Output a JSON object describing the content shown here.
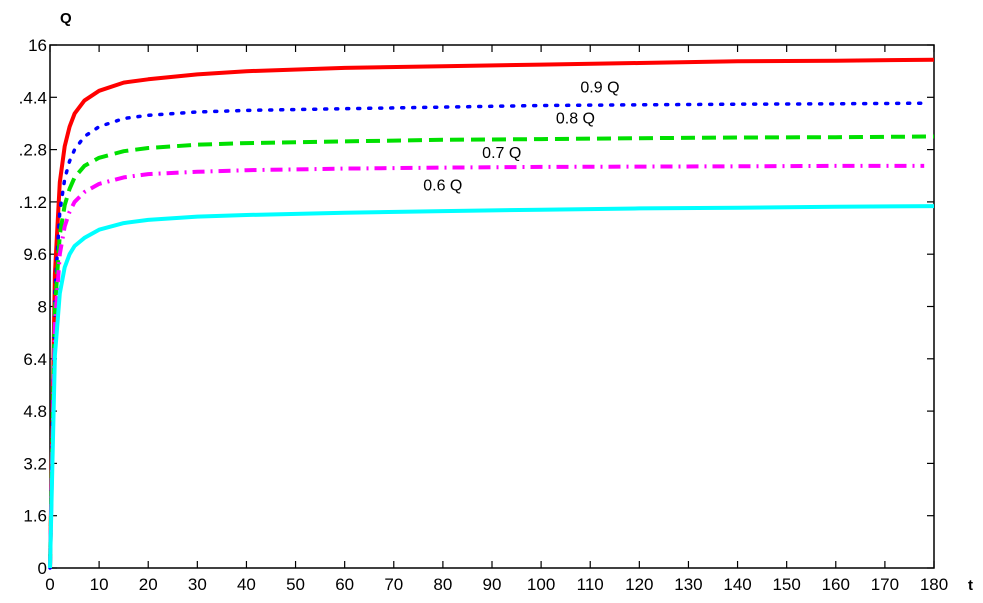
{
  "chart_data": {
    "type": "line",
    "xlabel": "t",
    "ylabel": "Q",
    "xlim": [
      0,
      180
    ],
    "ylim": [
      0,
      16
    ],
    "x_ticks": [
      0,
      10,
      20,
      30,
      40,
      50,
      60,
      70,
      80,
      90,
      100,
      110,
      120,
      130,
      140,
      150,
      160,
      170,
      180
    ],
    "y_ticks": [
      0,
      1.6,
      3.2,
      4.8,
      6.4,
      8,
      9.6,
      11.2,
      12.8,
      14.4,
      16
    ],
    "x_tick_labels": [
      "0",
      "10",
      "20",
      "30",
      "40",
      "50",
      "60",
      "70",
      "80",
      "90",
      "100",
      "110",
      "120",
      "130",
      "140",
      "150",
      "160",
      "170",
      "180"
    ],
    "y_tick_labels": [
      "0",
      "1.6",
      "3.2",
      "4.8",
      "6.4",
      "8",
      "9.6",
      ".1.2",
      ".2.8",
      ".4.4",
      "16"
    ],
    "grid": false,
    "series": [
      {
        "color": "#ff0000",
        "style": "solid",
        "x": [
          0,
          1,
          2,
          3,
          4,
          5,
          7,
          10,
          15,
          20,
          30,
          40,
          60,
          80,
          100,
          120,
          140,
          160,
          180
        ],
        "y": [
          0,
          9.0,
          11.8,
          12.9,
          13.5,
          13.9,
          14.3,
          14.6,
          14.85,
          14.95,
          15.1,
          15.2,
          15.3,
          15.35,
          15.4,
          15.45,
          15.5,
          15.52,
          15.55
        ]
      },
      {
        "color": "#0000ff",
        "style": "dotted",
        "x": [
          0,
          1,
          2,
          3,
          4,
          5,
          7,
          10,
          15,
          20,
          30,
          40,
          60,
          80,
          100,
          120,
          140,
          160,
          178
        ],
        "y": [
          0,
          8.4,
          10.9,
          11.9,
          12.45,
          12.8,
          13.2,
          13.5,
          13.75,
          13.85,
          13.95,
          14.0,
          14.05,
          14.1,
          14.15,
          14.17,
          14.19,
          14.2,
          14.22
        ]
      },
      {
        "color": "#00e000",
        "style": "dashed",
        "x": [
          0,
          1,
          2,
          3,
          4,
          5,
          7,
          10,
          15,
          20,
          30,
          40,
          60,
          80,
          100,
          120,
          140,
          160,
          180
        ],
        "y": [
          0,
          7.9,
          10.2,
          11.1,
          11.6,
          11.95,
          12.3,
          12.55,
          12.75,
          12.85,
          12.95,
          13.0,
          13.05,
          13.1,
          13.12,
          13.15,
          13.17,
          13.18,
          13.2
        ]
      },
      {
        "color": "#ff00ff",
        "style": "dashdot",
        "x": [
          0,
          1,
          2,
          3,
          4,
          5,
          7,
          10,
          15,
          20,
          30,
          40,
          60,
          80,
          100,
          120,
          140,
          160,
          178
        ],
        "y": [
          0,
          7.4,
          9.6,
          10.45,
          10.9,
          11.2,
          11.5,
          11.75,
          11.95,
          12.05,
          12.12,
          12.17,
          12.22,
          12.25,
          12.27,
          12.28,
          12.29,
          12.3,
          12.3
        ]
      },
      {
        "color": "#00ffff",
        "style": "solid",
        "x": [
          0,
          1,
          2,
          3,
          4,
          5,
          7,
          10,
          15,
          20,
          30,
          40,
          60,
          80,
          100,
          120,
          140,
          160,
          180
        ],
        "y": [
          0,
          6.5,
          8.4,
          9.2,
          9.6,
          9.85,
          10.1,
          10.35,
          10.55,
          10.65,
          10.75,
          10.8,
          10.87,
          10.92,
          10.96,
          11.0,
          11.02,
          11.05,
          11.07
        ]
      }
    ],
    "annotations": [
      {
        "text": "0.9 Q",
        "x": 108,
        "y": 14.55
      },
      {
        "text": "0.8 Q",
        "x": 103,
        "y": 13.6
      },
      {
        "text": "0.7 Q",
        "x": 88,
        "y": 12.55
      },
      {
        "text": "0.6 Q",
        "x": 76,
        "y": 11.55
      }
    ]
  },
  "colors": {
    "axis": "#000000",
    "background": "#ffffff"
  }
}
